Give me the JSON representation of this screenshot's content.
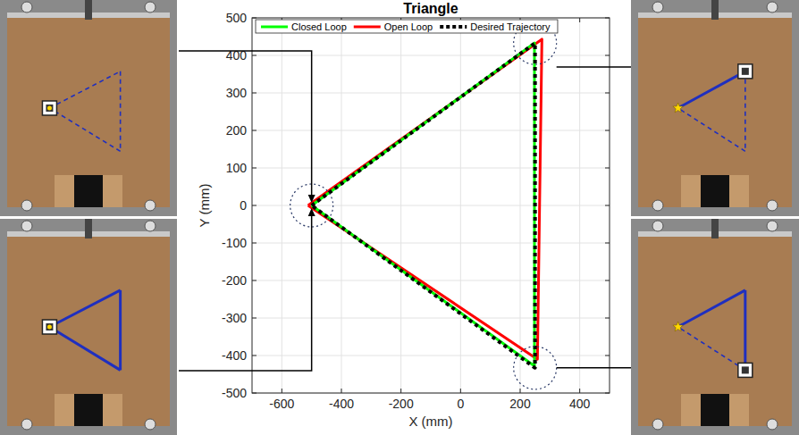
{
  "chart_data": {
    "type": "line",
    "title": "Triangle",
    "x_label": "X (mm)",
    "y_label": "Y (mm)",
    "xlim": [
      -700,
      500
    ],
    "ylim": [
      -500,
      500
    ],
    "xticks": [
      -600,
      -400,
      -200,
      0,
      200,
      400
    ],
    "yticks": [
      -500,
      -400,
      -300,
      -200,
      -100,
      0,
      100,
      200,
      300,
      400,
      500
    ],
    "grid": true,
    "legend": "top",
    "series": [
      {
        "name": "Closed Loop",
        "color": "#00ff00",
        "line_style": "solid",
        "x": [
          -500,
          248,
          248,
          -500
        ],
        "values": [
          0,
          433,
          -428,
          0
        ]
      },
      {
        "name": "Open Loop",
        "color": "#ff0000",
        "line_style": "solid",
        "x": [
          -512,
          273,
          258,
          -512
        ],
        "values": [
          0,
          443,
          -410,
          0
        ]
      },
      {
        "name": "Desired Trajectory",
        "color": "#000000",
        "line_style": "dotted",
        "x": [
          -500,
          250,
          250,
          -500
        ],
        "values": [
          0,
          433,
          -433,
          0
        ]
      }
    ]
  }
}
